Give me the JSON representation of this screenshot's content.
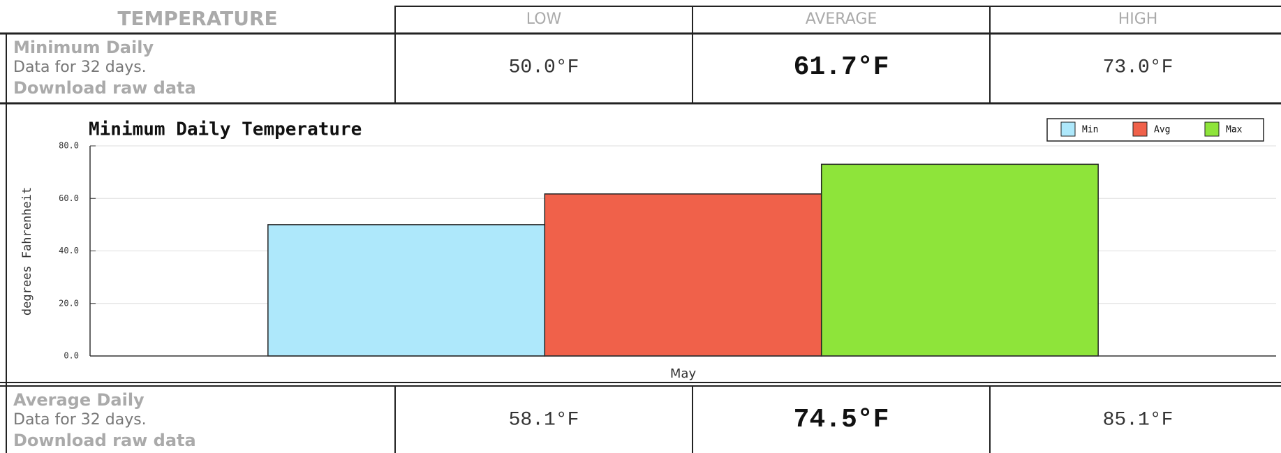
{
  "table": {
    "header": [
      "TEMPERATURE",
      "LOW",
      "AVERAGE",
      "HIGH"
    ],
    "rows": [
      {
        "label": "Minimum Daily",
        "note": "Data for 32 days.",
        "link": "Download raw data",
        "values": [
          "50.0°F",
          "61.7°F",
          "73.0°F"
        ]
      },
      {
        "label": "Average Daily",
        "note": "Data for 32 days.",
        "link": "Download raw data",
        "values": [
          "58.1°F",
          "74.5°F",
          "85.1°F"
        ]
      }
    ]
  },
  "chart_data": {
    "type": "bar",
    "title": "Minimum Daily Temperature",
    "y_label": "degrees Fahrenheit",
    "categories": [
      "May"
    ],
    "series": [
      {
        "name": "Min",
        "color": "#aee8fb",
        "values": [
          50
        ]
      },
      {
        "name": "Avg",
        "color": "#f0614a",
        "values": [
          61.7
        ]
      },
      {
        "name": "Max",
        "color": "#8ee43a",
        "values": [
          73
        ]
      }
    ],
    "ylim": [
      0,
      80
    ],
    "yticks": [
      {
        "value": 0,
        "label": "0.0"
      },
      {
        "value": 20,
        "label": "20.0"
      },
      {
        "value": 40,
        "label": "40.0"
      },
      {
        "value": 60,
        "label": "60.0"
      },
      {
        "value": 80,
        "label": "80.0"
      }
    ],
    "grid": true,
    "legend": "upper right"
  }
}
